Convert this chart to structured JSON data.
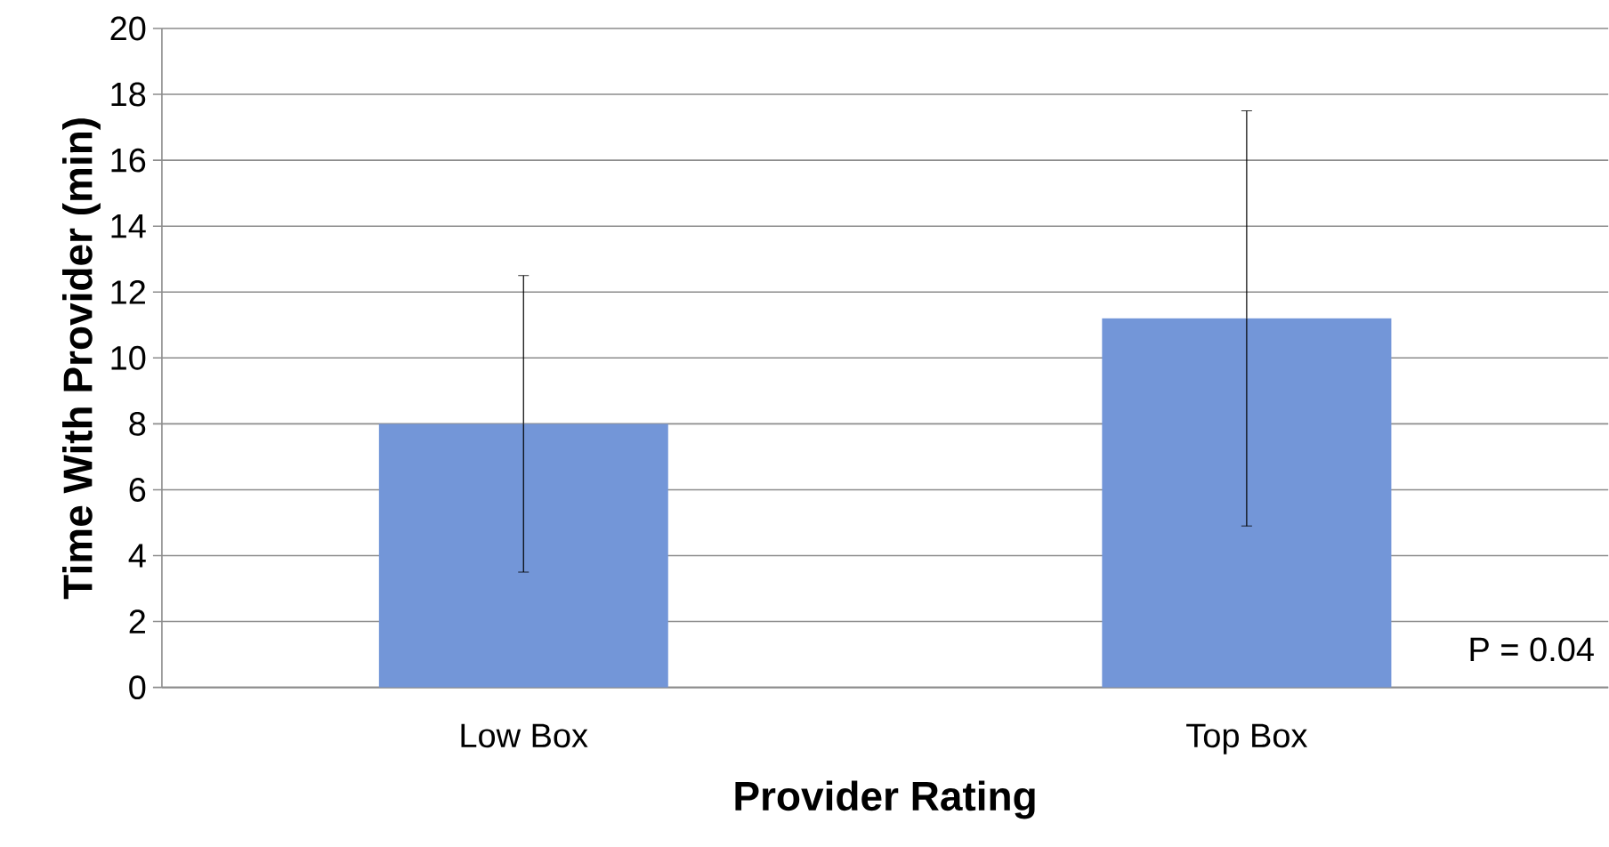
{
  "chart_data": {
    "type": "bar",
    "xlabel": "Provider Rating",
    "ylabel": "Time With Provider (min)",
    "categories": [
      "Low Box",
      "Top Box"
    ],
    "values": [
      8,
      11.2
    ],
    "errors": [
      4.5,
      6.3
    ],
    "color": "#7396d8",
    "ylim": [
      0,
      20
    ],
    "yticks": [
      0,
      2,
      4,
      6,
      8,
      10,
      12,
      14,
      16,
      18,
      20
    ],
    "grid": "y",
    "annotations": [
      "P = 0.04"
    ]
  }
}
